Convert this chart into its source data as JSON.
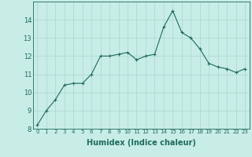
{
  "x": [
    0,
    1,
    2,
    3,
    4,
    5,
    6,
    7,
    8,
    9,
    10,
    11,
    12,
    13,
    14,
    15,
    16,
    17,
    18,
    19,
    20,
    21,
    22,
    23
  ],
  "y": [
    8.2,
    9.0,
    9.6,
    10.4,
    10.5,
    10.5,
    11.0,
    12.0,
    12.0,
    12.1,
    12.2,
    11.8,
    12.0,
    12.1,
    13.6,
    14.5,
    13.3,
    13.0,
    12.4,
    11.6,
    11.4,
    11.3,
    11.1,
    11.3
  ],
  "xlabel": "Humidex (Indice chaleur)",
  "ylim": [
    8,
    15
  ],
  "xlim": [
    -0.5,
    23.5
  ],
  "yticks": [
    8,
    9,
    10,
    11,
    12,
    13,
    14
  ],
  "xticks": [
    0,
    1,
    2,
    3,
    4,
    5,
    6,
    7,
    8,
    9,
    10,
    11,
    12,
    13,
    14,
    15,
    16,
    17,
    18,
    19,
    20,
    21,
    22,
    23
  ],
  "line_color": "#1e6b5e",
  "marker": "+",
  "bg_color": "#c8ece6",
  "grid_color": "#a8d8d0",
  "xlabel_fontsize": 7,
  "ytick_fontsize": 6,
  "xtick_fontsize": 5
}
